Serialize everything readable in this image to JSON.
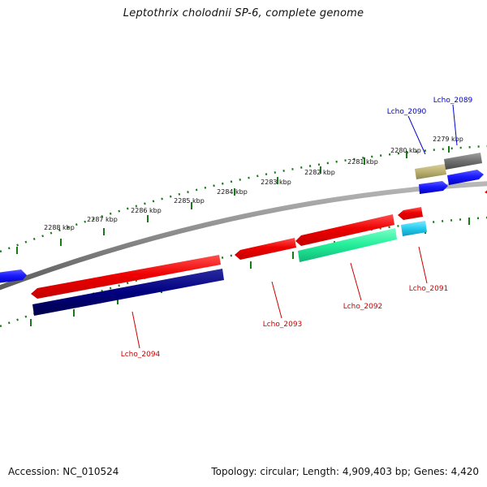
{
  "title": "Leptothrix cholodnii SP-6, complete genome",
  "footer": {
    "accession": "Accession: NC_010524",
    "summary": "Topology: circular; Length: 4,909,403 bp; Genes: 4,420"
  },
  "ticks": [
    "2279 kbp",
    "2280 kbp",
    "2281 kbp",
    "2282 kbp",
    "2283 kbp",
    "2284 kbp",
    "2285 kbp",
    "2286 kbp",
    "2287 kbp",
    "2288 kbp"
  ],
  "genes": [
    {
      "label": "Lcho_2089",
      "color": "#0000cc"
    },
    {
      "label": "Lcho_2090",
      "color": "#0000cc"
    },
    {
      "label": "Lcho_2091",
      "color": "#cc0000"
    },
    {
      "label": "Lcho_2092",
      "color": "#cc0000"
    },
    {
      "label": "Lcho_2093",
      "color": "#cc0000"
    },
    {
      "label": "Lcho_2094",
      "color": "#cc0000"
    }
  ],
  "colors": {
    "backbone": "#808080",
    "tick": "#1a7a1a",
    "forward_cds": "#1a1aff",
    "reverse_cds": "#ee0000",
    "gene_2092_feature": "#22ee99",
    "gene_2091_feature": "#22ccee",
    "gene_2094_feature": "#000080",
    "gene_2090_feature": "#bbb070",
    "gene_2089_feature": "#707070"
  }
}
